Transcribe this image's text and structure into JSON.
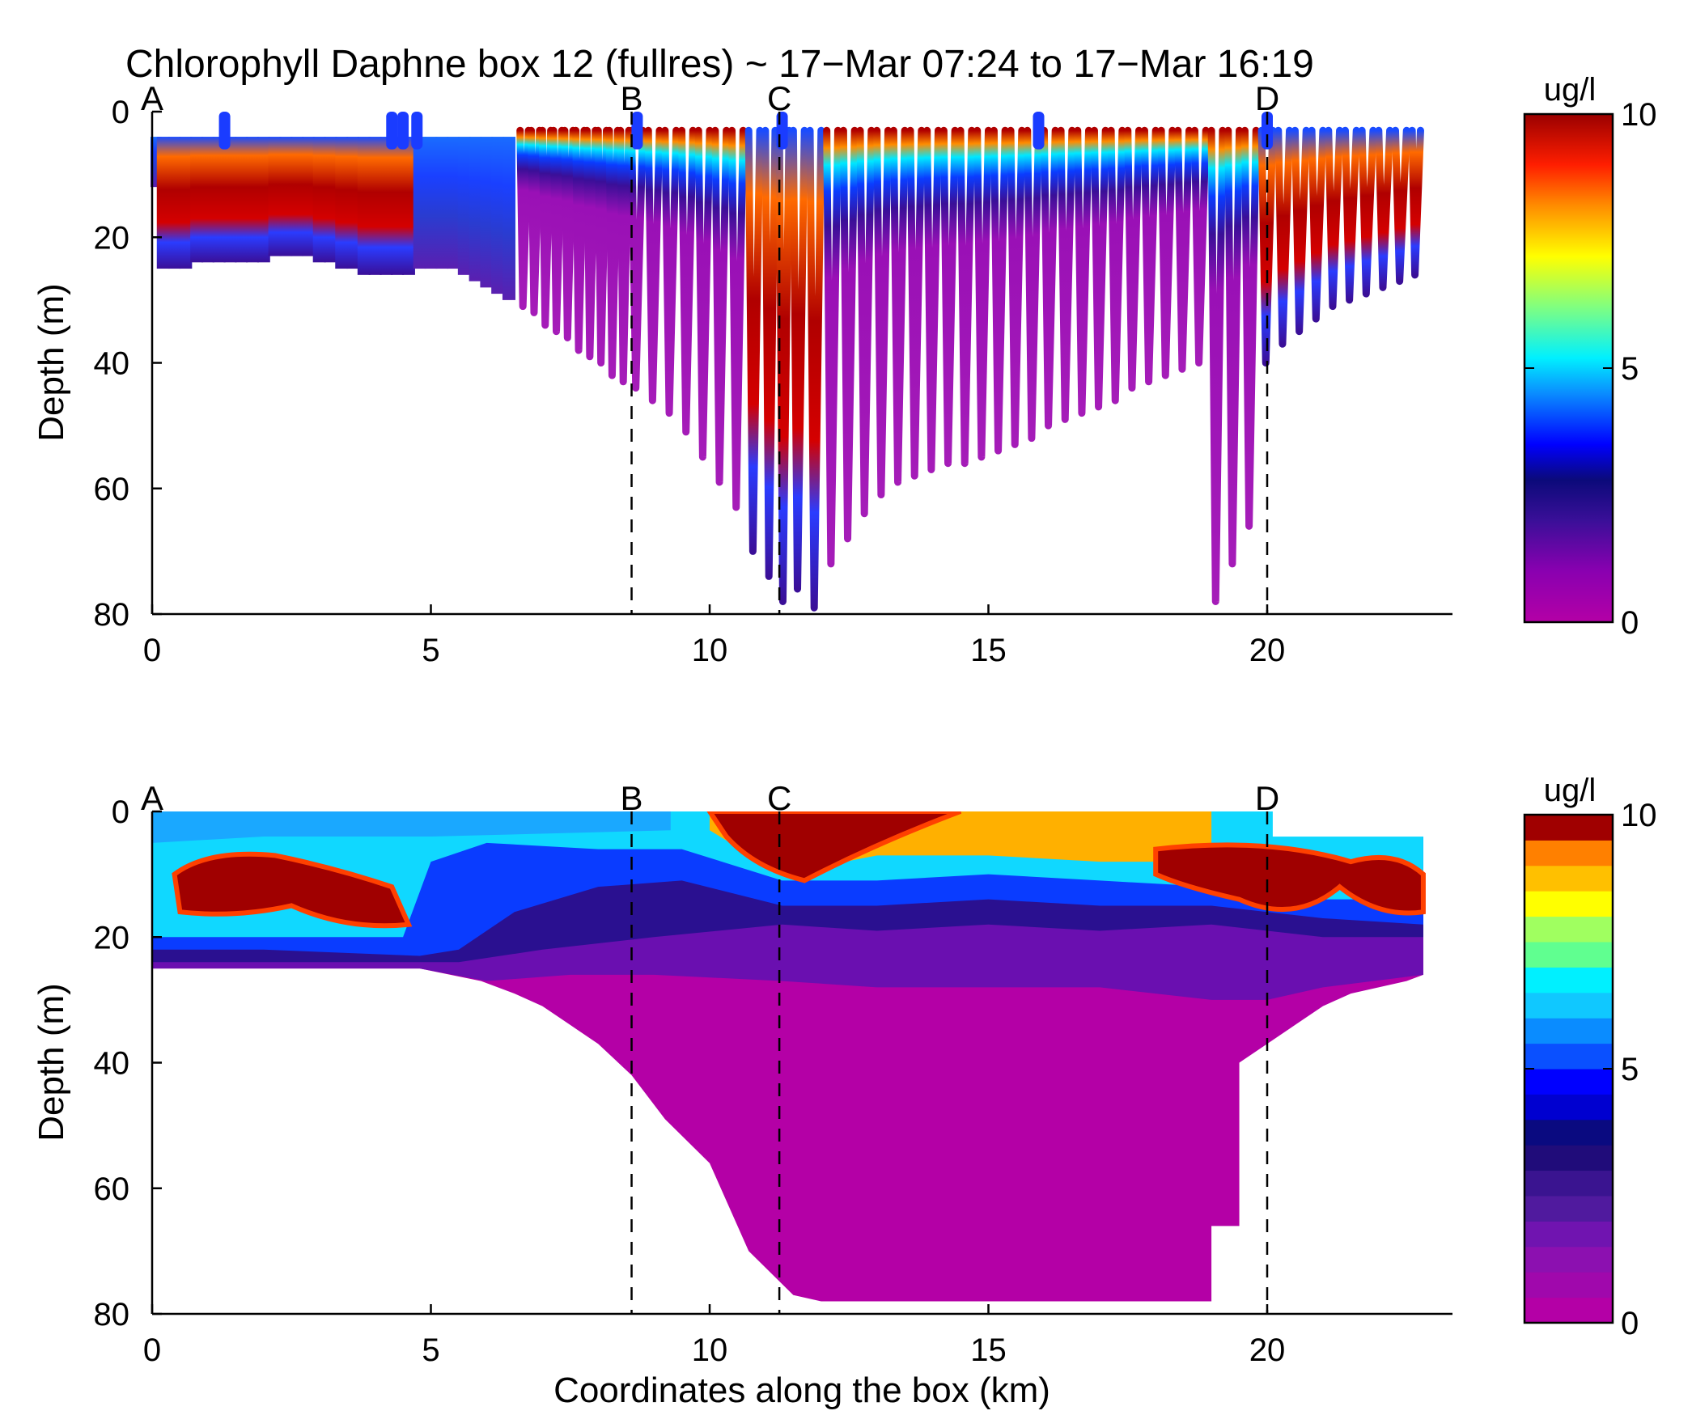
{
  "figure": {
    "title": "Chlorophyll Daphne box 12 (fullres) ~ 17−Mar 07:24 to 17−Mar 16:19",
    "xlabel": "Coordinates along the box (km)"
  },
  "chart_data": [
    {
      "type": "scatter",
      "panel": "top",
      "title": "Chlorophyll Daphne box 12 (fullres) ~ 17−Mar 07:24 to 17−Mar 16:19",
      "xlabel": "",
      "ylabel": "Depth (m)",
      "xlim": [
        0,
        23.3
      ],
      "ylim": [
        80,
        0
      ],
      "y_reversed": true,
      "xticks": [
        0,
        5,
        10,
        15,
        20
      ],
      "yticks": [
        0,
        20,
        40,
        60,
        80
      ],
      "colorbar": {
        "label": "ug/l",
        "min": 0,
        "max": 10,
        "ticks": [
          0,
          5,
          10
        ],
        "colormap": "jet-like",
        "continuous": true
      },
      "markers": [
        {
          "label": "A",
          "x": 0,
          "line": false
        },
        {
          "label": "B",
          "x": 8.6,
          "line": true
        },
        {
          "label": "C",
          "x": 11.25,
          "line": true
        },
        {
          "label": "D",
          "x": 20.0,
          "line": true
        }
      ],
      "profiles_x_km": [
        0.05,
        0.2,
        0.4,
        0.6,
        0.8,
        1.0,
        1.2,
        1.4,
        1.6,
        1.8,
        2.0,
        2.2,
        2.4,
        2.6,
        2.8,
        3.0,
        3.2,
        3.4,
        3.6,
        3.8,
        4.0,
        4.2,
        4.4,
        4.6,
        4.8,
        5.0,
        5.2,
        5.4,
        5.6,
        5.8,
        6.0,
        6.2,
        6.4,
        6.6,
        6.8,
        7.0,
        7.2,
        7.4,
        7.6,
        7.8,
        8.0,
        8.2,
        8.4,
        8.6,
        8.9,
        9.2,
        9.5,
        9.8,
        10.1,
        10.4,
        10.7,
        11.0,
        11.25,
        11.5,
        11.8,
        12.1,
        12.4,
        12.7,
        13.0,
        13.3,
        13.6,
        13.9,
        14.2,
        14.5,
        14.8,
        15.1,
        15.4,
        15.7,
        16.0,
        16.3,
        16.6,
        16.9,
        17.2,
        17.5,
        17.8,
        18.1,
        18.4,
        18.7,
        19.0,
        19.3,
        19.6,
        19.9,
        20.2,
        20.5,
        20.8,
        21.1,
        21.4,
        21.7,
        22.0,
        22.3,
        22.6,
        22.8
      ],
      "profiles_max_depth_m": [
        12,
        25,
        25,
        25,
        24,
        24,
        24,
        24,
        24,
        24,
        24,
        23,
        23,
        23,
        23,
        24,
        24,
        25,
        25,
        26,
        26,
        26,
        26,
        26,
        25,
        25,
        25,
        25,
        26,
        27,
        28,
        29,
        30,
        31,
        32,
        34,
        35,
        36,
        38,
        39,
        40,
        42,
        43,
        44,
        46,
        48,
        51,
        55,
        59,
        63,
        70,
        74,
        78,
        76,
        79,
        72,
        68,
        64,
        61,
        59,
        58,
        57,
        56,
        56,
        55,
        54,
        53,
        52,
        50,
        49,
        48,
        47,
        46,
        44,
        43,
        42,
        41,
        40,
        78,
        72,
        66,
        40,
        37,
        35,
        33,
        31,
        30,
        29,
        28,
        27,
        26,
        26
      ],
      "surface_chl_max_region_km": [
        [
          0.2,
          4.6
        ],
        [
          10.5,
          12.0
        ],
        [
          19.8,
          22.8
        ]
      ],
      "deep_value_ug_l": 0.3
    },
    {
      "type": "heatmap",
      "panel": "bottom",
      "title": "",
      "xlabel": "Coordinates along the box (km)",
      "ylabel": "Depth (m)",
      "xlim": [
        0,
        23.3
      ],
      "ylim": [
        80,
        0
      ],
      "y_reversed": true,
      "xticks": [
        0,
        5,
        10,
        15,
        20
      ],
      "yticks": [
        0,
        20,
        40,
        60,
        80
      ],
      "colorbar": {
        "label": "ug/l",
        "min": 0,
        "max": 10,
        "ticks": [
          0,
          5,
          10
        ],
        "colormap": "jet-like",
        "levels": 20
      },
      "markers": [
        {
          "label": "A",
          "x": 0,
          "line": false
        },
        {
          "label": "B",
          "x": 8.6,
          "line": true
        },
        {
          "label": "C",
          "x": 11.25,
          "line": true
        },
        {
          "label": "D",
          "x": 20.0,
          "line": true
        }
      ],
      "bottom_depth_x_km": [
        0.0,
        4.8,
        5.9,
        6.5,
        7.0,
        7.5,
        8.0,
        8.6,
        9.2,
        10.0,
        10.7,
        11.5,
        12.0,
        19.0,
        19.0,
        19.5,
        19.5,
        20.0,
        20.5,
        21.0,
        21.5,
        22.0,
        22.5,
        22.8
      ],
      "bottom_depth_m": [
        25,
        25,
        27,
        29,
        31,
        34,
        37,
        42,
        49,
        56,
        70,
        77,
        78,
        78,
        66,
        66,
        40,
        37,
        34,
        31,
        29,
        28,
        27,
        26
      ],
      "upper_chl_max_layer": [
        {
          "x": 0.4,
          "top_m": 8,
          "bottom_m": 17,
          "value": 10
        },
        {
          "x": 2.5,
          "top_m": 7,
          "bottom_m": 16,
          "value": 10
        },
        {
          "x": 4.3,
          "top_m": 12,
          "bottom_m": 20,
          "value": 10
        },
        {
          "x": 11.0,
          "top_m": 0,
          "bottom_m": 10,
          "value": 10
        },
        {
          "x": 12.5,
          "top_m": 0,
          "bottom_m": 5,
          "value": 10
        },
        {
          "x": 19.0,
          "top_m": 6,
          "bottom_m": 14,
          "value": 10
        },
        {
          "x": 21.0,
          "top_m": 7,
          "bottom_m": 17,
          "value": 10
        },
        {
          "x": 22.7,
          "top_m": 8,
          "bottom_m": 18,
          "value": 10
        }
      ]
    }
  ]
}
